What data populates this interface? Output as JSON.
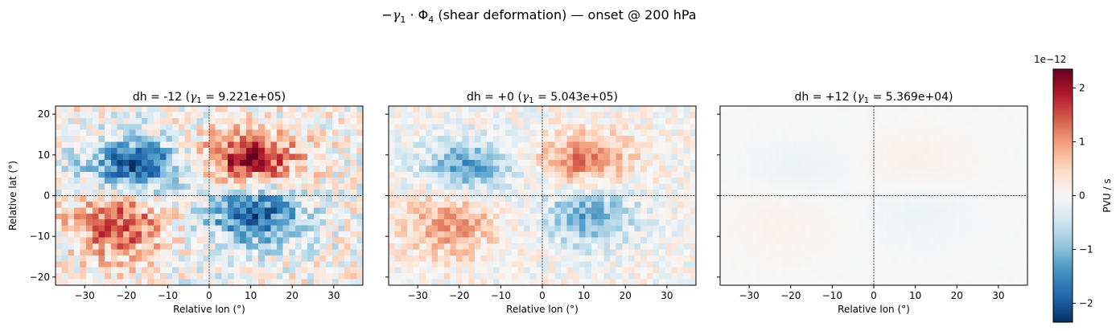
{
  "figure": {
    "suptitle_parts": [
      "−",
      "γ",
      "1",
      " · Φ",
      "4",
      "  (shear deformation)  —  onset @ 200 hPa"
    ]
  },
  "chart_data": [
    {
      "type": "heatmap",
      "title_prefix": "dh = -12   (",
      "title_gamma_value": " = 9.221e+05)",
      "amp": 1.0,
      "xlabel": "Relative lon (°)",
      "ylabel": "Relative lat (°)",
      "xlim": [
        -37,
        37
      ],
      "ylim": [
        -22,
        22
      ],
      "xticks": [
        -30,
        -20,
        -10,
        0,
        10,
        20,
        30
      ],
      "yticks": [
        -20,
        -10,
        0,
        10,
        20
      ],
      "pattern": "quadrupole: negative NW & SE, positive NE & SW, noisy"
    },
    {
      "type": "heatmap",
      "title_prefix": "dh = +0   (",
      "title_gamma_value": " = 5.043e+05)",
      "amp": 0.62,
      "xlabel": "Relative lon (°)",
      "ylabel": "",
      "xlim": [
        -37,
        37
      ],
      "ylim": [
        -22,
        22
      ],
      "xticks": [
        -30,
        -20,
        -10,
        0,
        10,
        20,
        30
      ],
      "yticks": [
        -20,
        -10,
        0,
        10,
        20
      ],
      "pattern": "quadrupole: negative NW & SE, positive NE & SW"
    },
    {
      "type": "heatmap",
      "title_prefix": "dh = +12   (",
      "title_gamma_value": " = 5.369e+04)",
      "amp": 0.06,
      "xlabel": "Relative lon (°)",
      "ylabel": "",
      "xlim": [
        -37,
        37
      ],
      "ylim": [
        -22,
        22
      ],
      "xticks": [
        -30,
        -20,
        -10,
        0,
        10,
        20,
        30
      ],
      "yticks": [
        -20,
        -10,
        0,
        10,
        20
      ],
      "pattern": "near-zero weak quadrupole"
    }
  ],
  "colorbar": {
    "label": "PVU / s",
    "exponent": "1e−12",
    "vmin": -2.35,
    "vmax": 2.35,
    "ticks": [
      -2,
      -1,
      0,
      1,
      2
    ],
    "tick_labels": [
      "−2",
      "−1",
      "0",
      "1",
      "2"
    ],
    "colormap": "RdBu_r",
    "colors": [
      "#053061",
      "#2166ac",
      "#4393c3",
      "#92c5de",
      "#d1e5f0",
      "#f7f7f7",
      "#fddbc7",
      "#f4a582",
      "#d6604d",
      "#b2182b",
      "#67001f"
    ]
  },
  "gamma_symbol": "γ",
  "gamma_sub": "1"
}
